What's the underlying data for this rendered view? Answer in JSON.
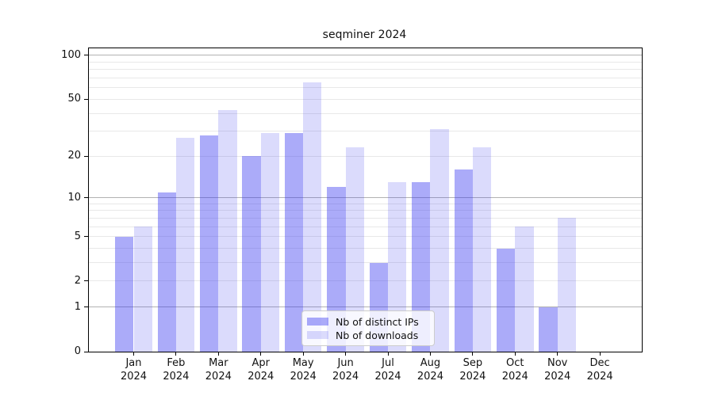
{
  "chart_data": {
    "type": "bar",
    "title": "seqminer 2024",
    "year": "2024",
    "categories": [
      "Jan",
      "Feb",
      "Mar",
      "Apr",
      "May",
      "Jun",
      "Jul",
      "Aug",
      "Sep",
      "Oct",
      "Nov",
      "Dec"
    ],
    "series": [
      {
        "name": "Nb of distinct IPs",
        "values": [
          5,
          11,
          28,
          20,
          29,
          12,
          3,
          13,
          16,
          4,
          1,
          0
        ],
        "fill": "rgba(55,55,240,0.42)",
        "fill_hex": "#aaaaf9"
      },
      {
        "name": "Nb of downloads",
        "values": [
          6,
          27,
          42,
          29,
          65,
          23,
          13,
          31,
          23,
          6,
          7,
          0
        ],
        "fill": "rgba(55,55,240,0.18)",
        "fill_hex": "#dadaf9"
      }
    ],
    "yticks": [
      0,
      1,
      2,
      5,
      10,
      20,
      50,
      100
    ],
    "gridlines": {
      "major": [
        1,
        10,
        100
      ],
      "minor": [
        2,
        3,
        4,
        5,
        6,
        7,
        8,
        9,
        20,
        30,
        40,
        50,
        60,
        70,
        80,
        90
      ]
    },
    "scale": "log10(1+x)",
    "ylim": [
      0,
      113
    ],
    "xlabel": "",
    "ylabel": "",
    "grid": true,
    "legend_position": "lower center",
    "axis_color": "#000000",
    "major_grid_color": "#b2b2b2",
    "minor_grid_color": "#e8e8e8"
  }
}
